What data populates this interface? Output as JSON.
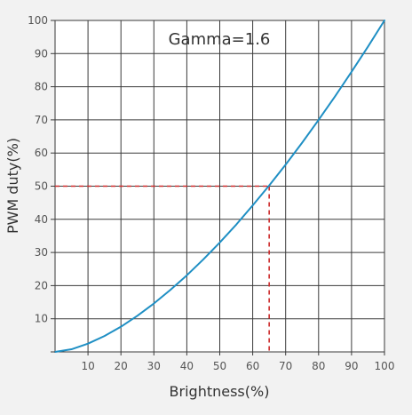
{
  "chart_data": {
    "type": "line",
    "annotation": "Gamma=1.6",
    "xlabel": "Brightness(%)",
    "ylabel": "PWM duty(%)",
    "xlim": [
      0,
      100
    ],
    "ylim": [
      0,
      100
    ],
    "x_ticks": [
      10,
      20,
      30,
      40,
      50,
      60,
      70,
      80,
      90,
      100
    ],
    "y_ticks": [
      10,
      20,
      30,
      40,
      50,
      60,
      70,
      80,
      90,
      100
    ],
    "grid": true,
    "series": [
      {
        "color": "#1f8fc4",
        "x": [
          0,
          5,
          10,
          15,
          20,
          25,
          30,
          35,
          40,
          45,
          50,
          55,
          60,
          65,
          70,
          75,
          80,
          85,
          90,
          95,
          100
        ],
        "y": [
          0,
          0.8,
          2.5,
          4.8,
          7.6,
          10.9,
          14.6,
          18.7,
          23.1,
          27.9,
          33.0,
          38.4,
          44.2,
          50.2,
          56.5,
          63.1,
          70.0,
          77.1,
          84.5,
          92.1,
          100
        ]
      }
    ],
    "reference_lines": {
      "color": "#cc2a2a",
      "x": 65,
      "y": 50
    }
  }
}
